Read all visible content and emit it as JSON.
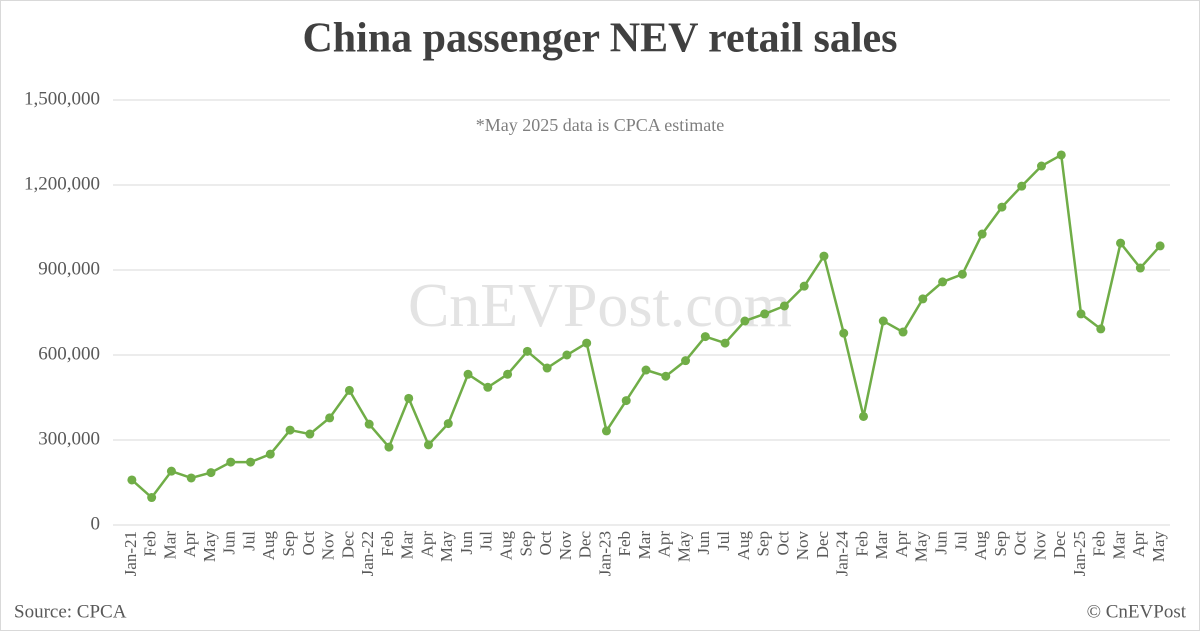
{
  "chart_data": {
    "type": "line",
    "title": "China passenger NEV retail sales",
    "annotation": "*May 2025 data is CPCA estimate",
    "watermark": "CnEVPost.com",
    "source": "Source: CPCA",
    "credit": "© CnEVPost",
    "categories": [
      "Jan-21",
      "Feb",
      "Mar",
      "Apr",
      "May",
      "Jun",
      "Jul",
      "Aug",
      "Sep",
      "Oct",
      "Nov",
      "Dec",
      "Jan-22",
      "Feb",
      "Mar",
      "Apr",
      "May",
      "Jun",
      "Jul",
      "Aug",
      "Sep",
      "Oct",
      "Nov",
      "Dec",
      "Jan-23",
      "Feb",
      "Mar",
      "Apr",
      "May",
      "Jun",
      "Jul",
      "Aug",
      "Sep",
      "Oct",
      "Nov",
      "Dec",
      "Jan-24",
      "Feb",
      "Mar",
      "Apr",
      "May",
      "Jun",
      "Jul",
      "Aug",
      "Sep",
      "Oct",
      "Nov",
      "Dec",
      "Jan-25",
      "Feb",
      "Mar",
      "Apr",
      "May"
    ],
    "series": [
      {
        "color": "#70ad47",
        "values": [
          159000,
          97000,
          190000,
          166000,
          185000,
          222000,
          222000,
          250000,
          335000,
          321000,
          378000,
          475000,
          356000,
          275000,
          447000,
          283000,
          358000,
          532000,
          486000,
          532000,
          613000,
          554000,
          600000,
          642000,
          332000,
          439000,
          547000,
          525000,
          580000,
          665000,
          642000,
          720000,
          745000,
          773000,
          843000,
          949000,
          677000,
          383000,
          720000,
          681000,
          798000,
          858000,
          885000,
          1027000,
          1122000,
          1196000,
          1267000,
          1306000,
          745000,
          692000,
          995000,
          907000,
          985000
        ]
      }
    ],
    "ylim": [
      0,
      1500000
    ],
    "yticks": [
      0,
      {
        "value": 300000,
        "label": "300,000"
      },
      {
        "value": 600000,
        "label": "600,000"
      },
      {
        "value": 900000,
        "label": "900,000"
      },
      {
        "value": 1200000,
        "label": "1,200,000"
      },
      {
        "value": 1500000,
        "label": "1,500,000"
      }
    ],
    "grid": true
  }
}
